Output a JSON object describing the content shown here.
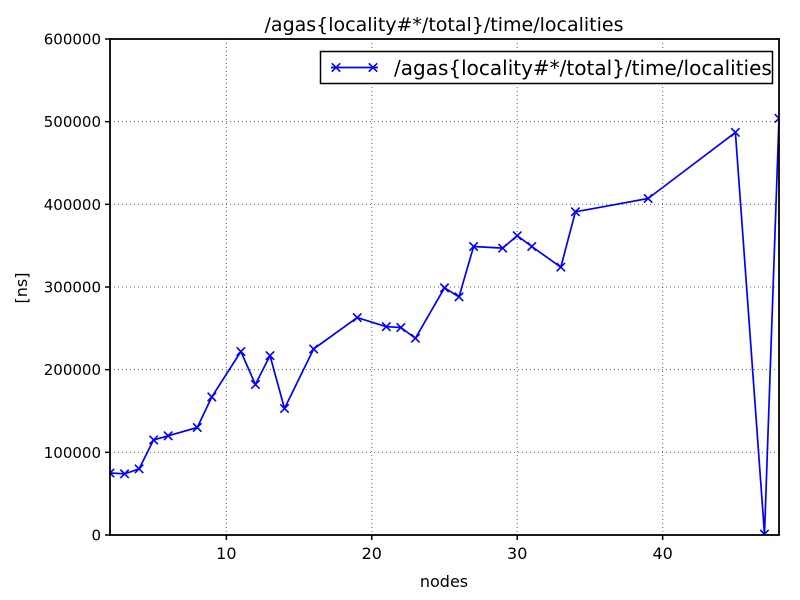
{
  "chart_data": {
    "type": "line",
    "title": "/agas{locality#*/total}/time/localities",
    "xlabel": "nodes",
    "ylabel": "[ns]",
    "grid": true,
    "legend_position": "upper center-right inside axes",
    "legend": [
      {
        "label": "/agas{locality#*/total}/time/localities",
        "color": "#0000ff",
        "marker": "x"
      }
    ],
    "xlim": [
      2,
      48
    ],
    "ylim": [
      0,
      600000
    ],
    "xticks": [
      10,
      20,
      30,
      40
    ],
    "yticks": [
      0,
      100000,
      200000,
      300000,
      400000,
      500000,
      600000
    ],
    "ytick_labels": [
      "0",
      "100000",
      "200000",
      "300000",
      "400000",
      "500000",
      "600000"
    ],
    "xtick_labels": [
      "10",
      "20",
      "30",
      "40"
    ],
    "series": [
      {
        "name": "/agas{locality#*/total}/time/localities",
        "color": "#0000ff",
        "marker": "x",
        "x": [
          2,
          3,
          4,
          5,
          6,
          8,
          9,
          11,
          12,
          13,
          14,
          16,
          19,
          21,
          22,
          23,
          25,
          26,
          27,
          29,
          30,
          31,
          33,
          34,
          39,
          45,
          47,
          48
        ],
        "y": [
          75000,
          74000,
          80000,
          115000,
          120000,
          130000,
          167000,
          222000,
          182000,
          217000,
          153000,
          225000,
          263000,
          252000,
          251000,
          238000,
          299000,
          288000,
          349000,
          347000,
          362000,
          349000,
          324000,
          391000,
          407000,
          487000,
          1000,
          504000
        ]
      }
    ],
    "colors": {
      "line": "#0000ff",
      "axes_frame": "#000000",
      "grid": "#606060",
      "background": "#ffffff",
      "text": "#000000"
    }
  }
}
